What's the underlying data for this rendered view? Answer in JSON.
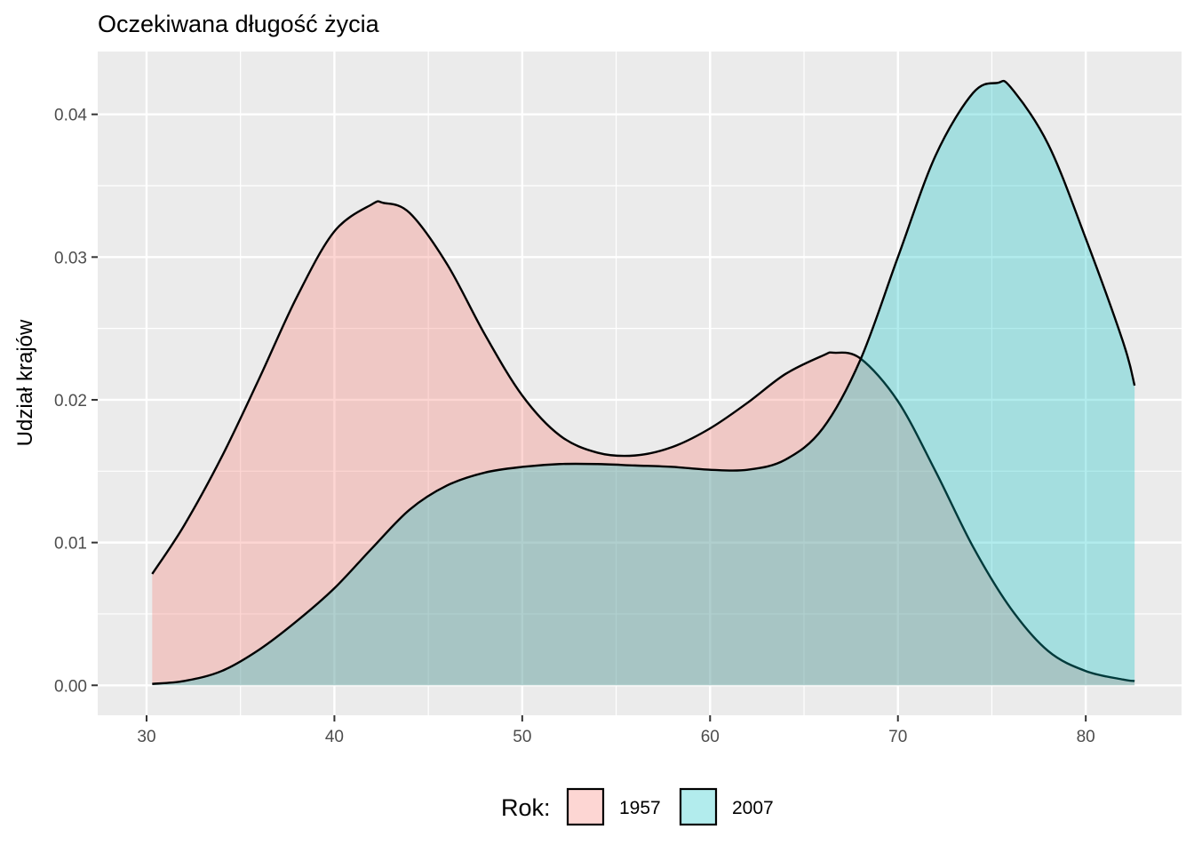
{
  "chart_data": {
    "type": "area",
    "subtype": "density",
    "title": "Oczekiwana długość życia",
    "xlabel": "",
    "ylabel": "Udział krajów",
    "xlim": [
      27.4,
      85.1
    ],
    "ylim": [
      -0.0021,
      0.0444
    ],
    "x_ticks": [
      30,
      40,
      50,
      60,
      70,
      80
    ],
    "y_ticks": [
      0.0,
      0.01,
      0.02,
      0.03,
      0.04
    ],
    "x_tick_labels": [
      "30",
      "40",
      "50",
      "60",
      "70",
      "80"
    ],
    "y_tick_labels": [
      "0.00",
      "0.01",
      "0.02",
      "0.03",
      "0.04"
    ],
    "grid": true,
    "legend": {
      "title": "Rok:",
      "position": "bottom"
    },
    "series": [
      {
        "name": "1957",
        "color": "#F8766D",
        "fill_opacity": 0.3,
        "x": [
          30.3,
          32,
          34,
          36,
          38,
          40,
          42,
          42.6,
          44,
          46,
          48,
          50,
          52,
          54,
          56,
          58,
          60,
          62,
          64,
          66,
          66.6,
          68,
          70,
          72,
          74,
          76,
          78,
          80,
          82,
          82.6
        ],
        "y": [
          0.0078,
          0.0112,
          0.016,
          0.0215,
          0.0272,
          0.0318,
          0.0337,
          0.0338,
          0.0331,
          0.0295,
          0.0246,
          0.0203,
          0.0175,
          0.0163,
          0.0161,
          0.0167,
          0.018,
          0.0198,
          0.0218,
          0.0231,
          0.0233,
          0.0229,
          0.0199,
          0.015,
          0.0097,
          0.0054,
          0.0024,
          0.001,
          0.0004,
          0.0003
        ]
      },
      {
        "name": "2007",
        "color": "#00BFC4",
        "fill_opacity": 0.3,
        "x": [
          30.3,
          32,
          34,
          36,
          38,
          40,
          42,
          44,
          46,
          48,
          50,
          52,
          54,
          56,
          58,
          60,
          62,
          64,
          66,
          68,
          70,
          72,
          74,
          75.3,
          76,
          78,
          80,
          82,
          82.6
        ],
        "y": [
          0.0001,
          0.0003,
          0.001,
          0.0025,
          0.0045,
          0.0068,
          0.0096,
          0.0123,
          0.014,
          0.0149,
          0.0153,
          0.0155,
          0.0155,
          0.0154,
          0.0153,
          0.0151,
          0.0151,
          0.0158,
          0.018,
          0.0228,
          0.03,
          0.0371,
          0.0415,
          0.0422,
          0.0419,
          0.0379,
          0.0313,
          0.024,
          0.021
        ]
      }
    ]
  }
}
